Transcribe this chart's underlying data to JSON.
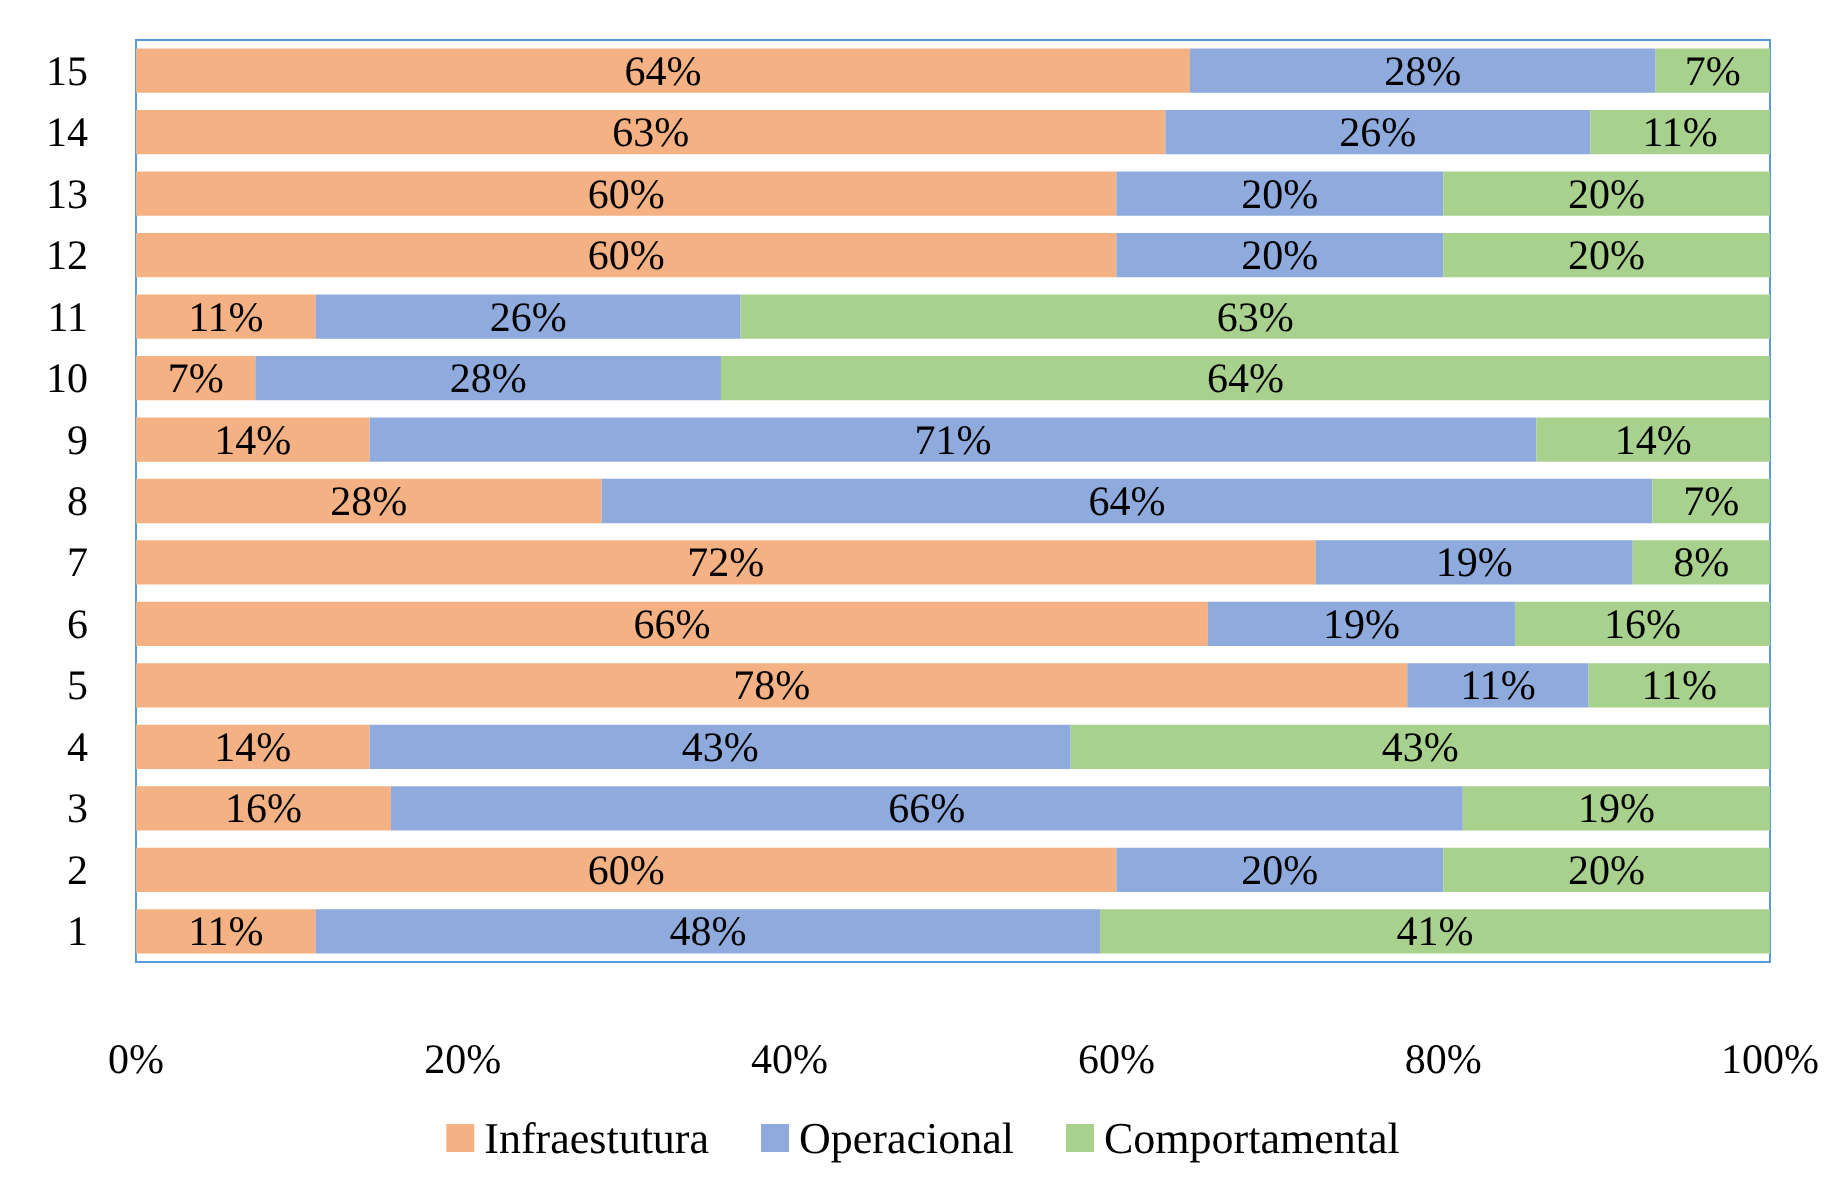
{
  "chart_data": {
    "type": "bar",
    "orientation": "horizontal",
    "stacked": true,
    "categories": [
      "15",
      "14",
      "13",
      "12",
      "11",
      "10",
      "9",
      "8",
      "7",
      "6",
      "5",
      "4",
      "3",
      "2",
      "1"
    ],
    "series": [
      {
        "name": "Infraestutura",
        "color": "#f4b183",
        "values": [
          64.5,
          63,
          60,
          60,
          11,
          7.3,
          14.3,
          28.5,
          72.2,
          65.6,
          77.8,
          14.3,
          15.6,
          60,
          11
        ],
        "value_labels": [
          "64%",
          "63%",
          "60%",
          "60%",
          "11%",
          "7%",
          "14%",
          "28%",
          "72%",
          "66%",
          "78%",
          "14%",
          "16%",
          "60%",
          "11%"
        ]
      },
      {
        "name": "Operacional",
        "color": "#8faadc",
        "values": [
          28.5,
          26,
          20,
          20,
          26,
          28.5,
          71.4,
          64.3,
          19.4,
          18.8,
          11.1,
          42.9,
          65.6,
          20,
          48
        ],
        "value_labels": [
          "28%",
          "26%",
          "20%",
          "20%",
          "26%",
          "28%",
          "71%",
          "64%",
          "19%",
          "19%",
          "11%",
          "43%",
          "66%",
          "20%",
          "48%"
        ]
      },
      {
        "name": "Comportamental",
        "color": "#a9d18e",
        "values": [
          7,
          11,
          20,
          20,
          63,
          64.2,
          14.3,
          7.2,
          8.4,
          15.6,
          11.1,
          42.8,
          18.8,
          20,
          41
        ],
        "value_labels": [
          "7%",
          "11%",
          "20%",
          "20%",
          "63%",
          "64%",
          "14%",
          "7%",
          "8%",
          "16%",
          "11%",
          "43%",
          "19%",
          "20%",
          "41%"
        ]
      }
    ],
    "xlim": [
      0,
      100
    ],
    "xticks": [
      {
        "value": 0,
        "label": "0%"
      },
      {
        "value": 20,
        "label": "20%"
      },
      {
        "value": 40,
        "label": "40%"
      },
      {
        "value": 60,
        "label": "60%"
      },
      {
        "value": 80,
        "label": "80%"
      },
      {
        "value": 100,
        "label": "100%"
      }
    ],
    "grid": false,
    "legend": "bottom"
  }
}
